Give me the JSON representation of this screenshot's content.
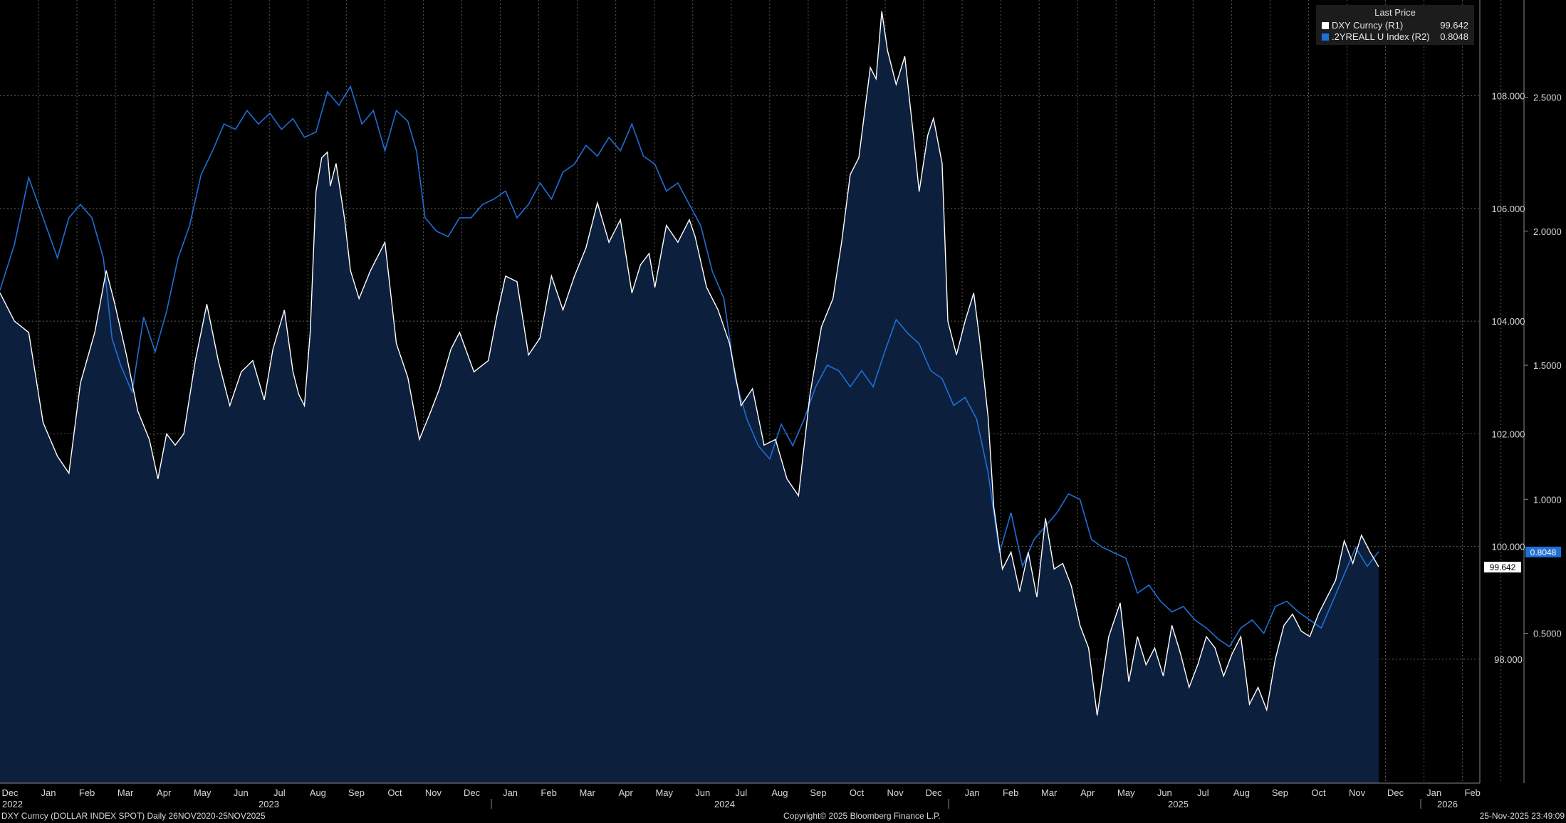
{
  "colors": {
    "background": "#000000",
    "area_fill": "#0c1f3d",
    "dxy_line": "#ffffff",
    "real_yield_line": "#1f6fd6",
    "grid": "#5a5a5a",
    "axis_text": "#d8d8d8"
  },
  "legend": {
    "header": "Last Price",
    "items": [
      {
        "name": "DXY Curncy  (R1)",
        "value": "99.642",
        "color": "#ffffff"
      },
      {
        "name": ".2YREALL U Index  (R2)",
        "value": "0.8048",
        "color": "#1f6fd6"
      }
    ]
  },
  "footer": {
    "left": "DXY Curncy (DOLLAR INDEX SPOT) Daily 26NOV2020-25NOV2025",
    "center": "Copyright© 2025 Bloomberg Finance L.P.",
    "right": "25-Nov-2025 23:49:09"
  },
  "chart_data": {
    "type": "area",
    "x_axis": {
      "month_labels": [
        "Dec",
        "Jan",
        "Feb",
        "Mar",
        "Apr",
        "May",
        "Jun",
        "Jul",
        "Aug",
        "Sep",
        "Oct",
        "Nov",
        "Dec",
        "Jan",
        "Feb",
        "Mar",
        "Apr",
        "May",
        "Jun",
        "Jul",
        "Aug",
        "Sep",
        "Oct",
        "Nov",
        "Dec",
        "Jan",
        "Feb",
        "Mar",
        "Apr",
        "May",
        "Jun",
        "Jul",
        "Aug",
        "Sep",
        "Oct",
        "Nov",
        "Dec",
        "Jan",
        "Feb"
      ],
      "year_labels": [
        "2022",
        "2023",
        "2024",
        "2025",
        "2026"
      ]
    },
    "y_axis_right_1": {
      "label": "DXY",
      "range": [
        95.8,
        109.7
      ],
      "ticks": [
        "98.000",
        "100.000",
        "102.000",
        "104.000",
        "106.000",
        "108.000"
      ],
      "last_value_badge": "99.642"
    },
    "y_axis_right_2": {
      "label": ".2YREALL",
      "range": [
        -0.0588,
        2.8625
      ],
      "ticks": [
        "0.5000",
        "1.0000",
        "1.5000",
        "2.0000",
        "2.5000"
      ],
      "last_value_badge": "0.8048"
    },
    "series": [
      {
        "name": "DXY Curncy",
        "axis": "R1",
        "style": "area",
        "points": [
          [
            0,
            104.5
          ],
          [
            0.5,
            104.0
          ],
          [
            1,
            103.8
          ],
          [
            1.5,
            102.2
          ],
          [
            2,
            101.6
          ],
          [
            2.4,
            101.3
          ],
          [
            2.8,
            102.9
          ],
          [
            3.3,
            103.8
          ],
          [
            3.7,
            104.9
          ],
          [
            4,
            104.3
          ],
          [
            4.4,
            103.4
          ],
          [
            4.8,
            102.4
          ],
          [
            5.2,
            101.9
          ],
          [
            5.5,
            101.2
          ],
          [
            5.8,
            102.0
          ],
          [
            6.1,
            101.8
          ],
          [
            6.4,
            102.0
          ],
          [
            6.8,
            103.3
          ],
          [
            7.2,
            104.3
          ],
          [
            7.6,
            103.3
          ],
          [
            8,
            102.5
          ],
          [
            8.4,
            103.1
          ],
          [
            8.8,
            103.3
          ],
          [
            9.2,
            102.6
          ],
          [
            9.5,
            103.5
          ],
          [
            9.9,
            104.2
          ],
          [
            10.2,
            103.1
          ],
          [
            10.4,
            102.7
          ],
          [
            10.6,
            102.5
          ],
          [
            10.8,
            103.8
          ],
          [
            11.0,
            106.3
          ],
          [
            11.2,
            106.9
          ],
          [
            11.4,
            107.0
          ],
          [
            11.5,
            106.4
          ],
          [
            11.7,
            106.8
          ],
          [
            12.0,
            105.8
          ],
          [
            12.2,
            104.9
          ],
          [
            12.5,
            104.4
          ],
          [
            12.9,
            104.9
          ],
          [
            13.4,
            105.4
          ],
          [
            13.8,
            103.6
          ],
          [
            14.2,
            103.0
          ],
          [
            14.6,
            101.9
          ],
          [
            15.0,
            102.4
          ],
          [
            15.3,
            102.8
          ],
          [
            15.7,
            103.5
          ],
          [
            16.0,
            103.8
          ],
          [
            16.5,
            103.1
          ],
          [
            17.0,
            103.3
          ],
          [
            17.3,
            104.1
          ],
          [
            17.6,
            104.8
          ],
          [
            18.0,
            104.7
          ],
          [
            18.4,
            103.4
          ],
          [
            18.8,
            103.7
          ],
          [
            19.2,
            104.8
          ],
          [
            19.6,
            104.2
          ],
          [
            20.0,
            104.8
          ],
          [
            20.4,
            105.3
          ],
          [
            20.8,
            106.1
          ],
          [
            21.2,
            105.4
          ],
          [
            21.6,
            105.8
          ],
          [
            22.0,
            104.5
          ],
          [
            22.3,
            105.0
          ],
          [
            22.6,
            105.2
          ],
          [
            22.8,
            104.6
          ],
          [
            23.2,
            105.7
          ],
          [
            23.6,
            105.4
          ],
          [
            24.0,
            105.8
          ],
          [
            24.2,
            105.5
          ],
          [
            24.6,
            104.6
          ],
          [
            25.0,
            104.2
          ],
          [
            25.4,
            103.6
          ],
          [
            25.8,
            102.5
          ],
          [
            26.2,
            102.8
          ],
          [
            26.6,
            101.8
          ],
          [
            27.0,
            101.9
          ],
          [
            27.4,
            101.2
          ],
          [
            27.8,
            100.9
          ],
          [
            28.2,
            102.7
          ],
          [
            28.6,
            103.9
          ],
          [
            29.0,
            104.4
          ],
          [
            29.3,
            105.4
          ],
          [
            29.6,
            106.6
          ],
          [
            29.9,
            106.9
          ],
          [
            30.1,
            107.7
          ],
          [
            30.3,
            108.5
          ],
          [
            30.5,
            108.3
          ],
          [
            30.7,
            109.5
          ],
          [
            30.9,
            108.8
          ],
          [
            31.2,
            108.2
          ],
          [
            31.5,
            108.7
          ],
          [
            31.8,
            107.3
          ],
          [
            32.0,
            106.3
          ],
          [
            32.3,
            107.3
          ],
          [
            32.5,
            107.6
          ],
          [
            32.8,
            106.8
          ],
          [
            33.0,
            104.0
          ],
          [
            33.3,
            103.4
          ],
          [
            33.6,
            104.0
          ],
          [
            33.9,
            104.5
          ],
          [
            34.1,
            103.7
          ],
          [
            34.4,
            102.3
          ],
          [
            34.6,
            100.7
          ],
          [
            34.9,
            99.6
          ],
          [
            35.2,
            99.9
          ],
          [
            35.5,
            99.2
          ],
          [
            35.8,
            99.9
          ],
          [
            36.1,
            99.1
          ],
          [
            36.4,
            100.5
          ],
          [
            36.7,
            99.6
          ],
          [
            37.0,
            99.7
          ],
          [
            37.3,
            99.3
          ],
          [
            37.6,
            98.6
          ],
          [
            37.9,
            98.2
          ],
          [
            38.2,
            97.0
          ],
          [
            38.6,
            98.4
          ],
          [
            39.0,
            99.0
          ],
          [
            39.3,
            97.6
          ],
          [
            39.6,
            98.4
          ],
          [
            39.9,
            97.9
          ],
          [
            40.2,
            98.2
          ],
          [
            40.5,
            97.7
          ],
          [
            40.8,
            98.6
          ],
          [
            41.1,
            98.1
          ],
          [
            41.4,
            97.5
          ],
          [
            41.7,
            97.9
          ],
          [
            42.0,
            98.4
          ],
          [
            42.3,
            98.2
          ],
          [
            42.6,
            97.7
          ],
          [
            42.9,
            98.1
          ],
          [
            43.2,
            98.4
          ],
          [
            43.5,
            97.2
          ],
          [
            43.8,
            97.5
          ],
          [
            44.1,
            97.1
          ],
          [
            44.4,
            98.0
          ],
          [
            44.7,
            98.6
          ],
          [
            45.0,
            98.8
          ],
          [
            45.3,
            98.5
          ],
          [
            45.6,
            98.4
          ],
          [
            45.9,
            98.8
          ],
          [
            46.2,
            99.1
          ],
          [
            46.5,
            99.4
          ],
          [
            46.8,
            100.1
          ],
          [
            47.1,
            99.7
          ],
          [
            47.4,
            100.2
          ],
          [
            47.7,
            99.9
          ],
          [
            48.0,
            99.64
          ]
        ]
      },
      {
        "name": ".2YREALL U Index",
        "axis": "R2",
        "style": "line",
        "points": [
          [
            0,
            1.78
          ],
          [
            0.5,
            1.95
          ],
          [
            1.0,
            2.2
          ],
          [
            1.5,
            2.05
          ],
          [
            2.0,
            1.9
          ],
          [
            2.4,
            2.05
          ],
          [
            2.8,
            2.1
          ],
          [
            3.2,
            2.05
          ],
          [
            3.6,
            1.9
          ],
          [
            3.9,
            1.6
          ],
          [
            4.2,
            1.5
          ],
          [
            4.6,
            1.4
          ],
          [
            5.0,
            1.68
          ],
          [
            5.4,
            1.55
          ],
          [
            5.8,
            1.7
          ],
          [
            6.2,
            1.9
          ],
          [
            6.6,
            2.02
          ],
          [
            7.0,
            2.21
          ],
          [
            7.4,
            2.3
          ],
          [
            7.8,
            2.4
          ],
          [
            8.2,
            2.38
          ],
          [
            8.6,
            2.45
          ],
          [
            9.0,
            2.4
          ],
          [
            9.4,
            2.44
          ],
          [
            9.8,
            2.38
          ],
          [
            10.2,
            2.42
          ],
          [
            10.6,
            2.35
          ],
          [
            11.0,
            2.37
          ],
          [
            11.4,
            2.52
          ],
          [
            11.8,
            2.47
          ],
          [
            12.2,
            2.54
          ],
          [
            12.6,
            2.4
          ],
          [
            13.0,
            2.45
          ],
          [
            13.4,
            2.3
          ],
          [
            13.8,
            2.45
          ],
          [
            14.2,
            2.41
          ],
          [
            14.5,
            2.3
          ],
          [
            14.8,
            2.05
          ],
          [
            15.2,
            2.0
          ],
          [
            15.6,
            1.98
          ],
          [
            16.0,
            2.05
          ],
          [
            16.4,
            2.05
          ],
          [
            16.8,
            2.1
          ],
          [
            17.2,
            2.12
          ],
          [
            17.6,
            2.15
          ],
          [
            18.0,
            2.05
          ],
          [
            18.4,
            2.1
          ],
          [
            18.8,
            2.18
          ],
          [
            19.2,
            2.12
          ],
          [
            19.6,
            2.22
          ],
          [
            20.0,
            2.25
          ],
          [
            20.4,
            2.32
          ],
          [
            20.8,
            2.28
          ],
          [
            21.2,
            2.35
          ],
          [
            21.6,
            2.3
          ],
          [
            22.0,
            2.4
          ],
          [
            22.4,
            2.28
          ],
          [
            22.8,
            2.25
          ],
          [
            23.2,
            2.15
          ],
          [
            23.6,
            2.18
          ],
          [
            24.0,
            2.1
          ],
          [
            24.4,
            2.02
          ],
          [
            24.8,
            1.85
          ],
          [
            25.2,
            1.75
          ],
          [
            25.6,
            1.45
          ],
          [
            26.0,
            1.3
          ],
          [
            26.4,
            1.2
          ],
          [
            26.8,
            1.15
          ],
          [
            27.2,
            1.28
          ],
          [
            27.6,
            1.2
          ],
          [
            28.0,
            1.3
          ],
          [
            28.4,
            1.42
          ],
          [
            28.8,
            1.5
          ],
          [
            29.2,
            1.48
          ],
          [
            29.6,
            1.42
          ],
          [
            30.0,
            1.48
          ],
          [
            30.4,
            1.42
          ],
          [
            30.8,
            1.55
          ],
          [
            31.2,
            1.67
          ],
          [
            31.6,
            1.62
          ],
          [
            32.0,
            1.58
          ],
          [
            32.4,
            1.48
          ],
          [
            32.8,
            1.45
          ],
          [
            33.2,
            1.35
          ],
          [
            33.6,
            1.38
          ],
          [
            34.0,
            1.3
          ],
          [
            34.4,
            1.1
          ],
          [
            34.8,
            0.8
          ],
          [
            35.2,
            0.95
          ],
          [
            35.6,
            0.75
          ],
          [
            36.0,
            0.85
          ],
          [
            36.4,
            0.9
          ],
          [
            36.8,
            0.95
          ],
          [
            37.2,
            1.02
          ],
          [
            37.6,
            1.0
          ],
          [
            38.0,
            0.85
          ],
          [
            38.4,
            0.82
          ],
          [
            38.8,
            0.8
          ],
          [
            39.2,
            0.78
          ],
          [
            39.6,
            0.65
          ],
          [
            40.0,
            0.68
          ],
          [
            40.4,
            0.62
          ],
          [
            40.8,
            0.58
          ],
          [
            41.2,
            0.6
          ],
          [
            41.6,
            0.55
          ],
          [
            42.0,
            0.52
          ],
          [
            42.4,
            0.48
          ],
          [
            42.8,
            0.45
          ],
          [
            43.2,
            0.52
          ],
          [
            43.6,
            0.55
          ],
          [
            44.0,
            0.5
          ],
          [
            44.4,
            0.6
          ],
          [
            44.8,
            0.62
          ],
          [
            45.2,
            0.58
          ],
          [
            45.6,
            0.55
          ],
          [
            46.0,
            0.52
          ],
          [
            46.4,
            0.62
          ],
          [
            46.8,
            0.72
          ],
          [
            47.2,
            0.82
          ],
          [
            47.6,
            0.75
          ],
          [
            48.0,
            0.8048
          ]
        ]
      }
    ],
    "last_date_label": "Nov",
    "end_month_index": 48
  }
}
